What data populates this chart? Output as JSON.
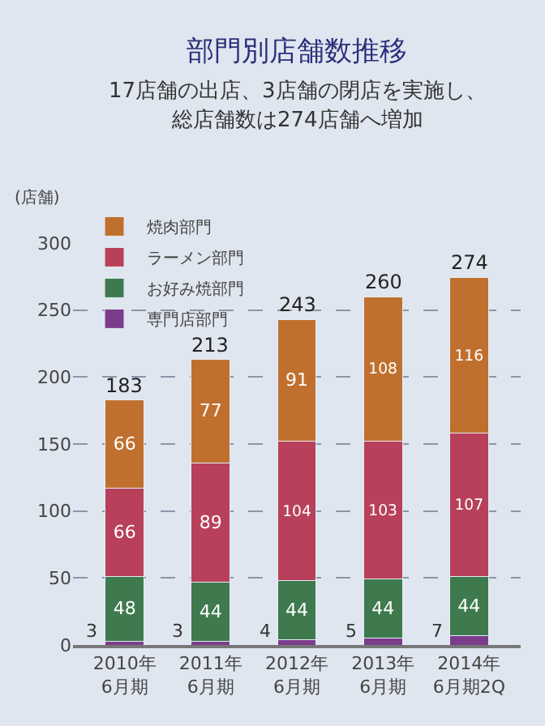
{
  "chart_data": {
    "type": "bar",
    "title": "部門別店舗数推移",
    "subtitle": [
      "17店舗の出店、3店舗の閉店を実施し、",
      "総店舗数は274店舗へ増加"
    ],
    "ylabel": "(店舗)",
    "categories": [
      "2010年\n6月期",
      "2011年\n6月期",
      "2012年\n6月期",
      "2013年\n6月期",
      "2014年\n6月期2Q"
    ],
    "stacked": true,
    "series": [
      {
        "name": "専門店部門",
        "color": "#7b3c8c",
        "values": [
          3,
          3,
          4,
          5,
          7
        ]
      },
      {
        "name": "お好み焼部門",
        "color": "#3e7a4e",
        "values": [
          48,
          44,
          44,
          44,
          44
        ]
      },
      {
        "name": "ラーメン部門",
        "color": "#b8405a",
        "values": [
          66,
          89,
          104,
          103,
          107
        ]
      },
      {
        "name": "焼肉部門",
        "color": "#c0702e",
        "values": [
          66,
          77,
          91,
          108,
          116
        ]
      }
    ],
    "totals": [
      "183",
      "213",
      "243",
      "260",
      "274"
    ],
    "data_labels": true,
    "ylim": [
      0,
      300
    ],
    "yticks": [
      0,
      50,
      100,
      150,
      200,
      250,
      300
    ],
    "grid": "y",
    "legend": "top left"
  }
}
